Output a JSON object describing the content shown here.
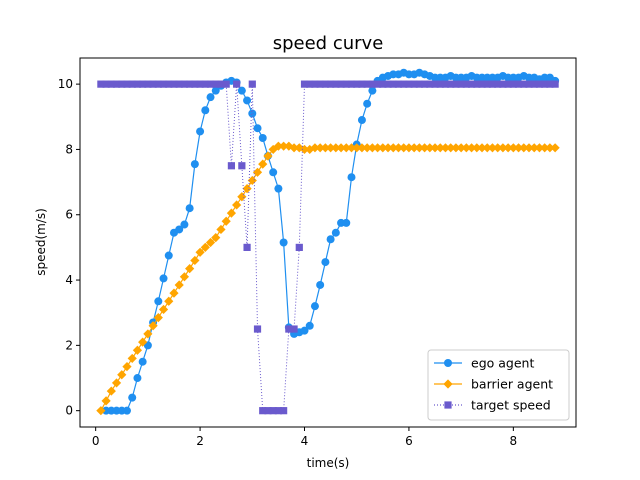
{
  "chart_data": {
    "type": "line",
    "title": "speed curve",
    "xlabel": "time(s)",
    "ylabel": "speed(m/s)",
    "xlim": [
      -0.3,
      9.2
    ],
    "ylim": [
      -0.5,
      10.8
    ],
    "xticks": [
      0,
      2,
      4,
      6,
      8
    ],
    "yticks": [
      0,
      2,
      4,
      6,
      8,
      10
    ],
    "grid": false,
    "legend_position": "lower right",
    "series": [
      {
        "name": "ego agent",
        "color": "#1f8ff0",
        "line_style": "solid",
        "marker": "circle",
        "x": [
          0.2,
          0.3,
          0.4,
          0.5,
          0.6,
          0.7,
          0.8,
          0.9,
          1.0,
          1.1,
          1.2,
          1.3,
          1.4,
          1.5,
          1.6,
          1.7,
          1.8,
          1.9,
          2.0,
          2.1,
          2.2,
          2.3,
          2.4,
          2.5,
          2.6,
          2.7,
          2.8,
          2.9,
          3.0,
          3.1,
          3.2,
          3.3,
          3.4,
          3.5,
          3.6,
          3.7,
          3.8,
          3.9,
          4.0,
          4.1,
          4.2,
          4.3,
          4.4,
          4.5,
          4.6,
          4.7,
          4.8,
          4.9,
          5.0,
          5.1,
          5.2,
          5.3,
          5.4,
          5.5,
          5.6,
          5.7,
          5.8,
          5.9,
          6.0,
          6.1,
          6.2,
          6.3,
          6.4,
          6.5,
          6.6,
          6.7,
          6.8,
          6.9,
          7.0,
          7.1,
          7.2,
          7.3,
          7.4,
          7.5,
          7.6,
          7.7,
          7.8,
          7.9,
          8.0,
          8.1,
          8.2,
          8.3,
          8.4,
          8.5,
          8.6,
          8.7,
          8.8
        ],
        "y": [
          0,
          0,
          0,
          0,
          0,
          0.4,
          1.0,
          1.5,
          2.0,
          2.7,
          3.35,
          4.05,
          4.75,
          5.45,
          5.55,
          5.7,
          6.2,
          7.55,
          8.55,
          9.2,
          9.6,
          9.8,
          9.95,
          10.05,
          10.1,
          10.05,
          9.8,
          9.5,
          9.1,
          8.65,
          8.35,
          7.8,
          7.3,
          6.8,
          5.15,
          2.55,
          2.35,
          2.4,
          2.45,
          2.6,
          3.2,
          3.85,
          4.55,
          5.25,
          5.45,
          5.75,
          5.75,
          7.15,
          8.15,
          8.9,
          9.4,
          9.8,
          10.1,
          10.2,
          10.25,
          10.3,
          10.3,
          10.35,
          10.3,
          10.3,
          10.35,
          10.3,
          10.25,
          10.2,
          10.2,
          10.2,
          10.25,
          10.2,
          10.2,
          10.2,
          10.25,
          10.2,
          10.2,
          10.2,
          10.2,
          10.2,
          10.25,
          10.2,
          10.2,
          10.2,
          10.25,
          10.2,
          10.2,
          10.15,
          10.2,
          10.2,
          10.1
        ]
      },
      {
        "name": "barrier agent",
        "color": "#ffa500",
        "line_style": "solid",
        "marker": "diamond",
        "x": [
          0.1,
          0.2,
          0.3,
          0.4,
          0.5,
          0.6,
          0.7,
          0.8,
          0.9,
          1.0,
          1.1,
          1.2,
          1.3,
          1.4,
          1.5,
          1.6,
          1.7,
          1.8,
          1.9,
          2.0,
          2.1,
          2.2,
          2.3,
          2.4,
          2.5,
          2.6,
          2.7,
          2.8,
          2.9,
          3.0,
          3.1,
          3.2,
          3.3,
          3.4,
          3.5,
          3.6,
          3.7,
          3.8,
          3.9,
          4.0,
          4.1,
          4.2,
          4.3,
          4.4,
          4.5,
          4.6,
          4.7,
          4.8,
          4.9,
          5.0,
          5.1,
          5.2,
          5.3,
          5.4,
          5.5,
          5.6,
          5.7,
          5.8,
          5.9,
          6.0,
          6.1,
          6.2,
          6.3,
          6.4,
          6.5,
          6.6,
          6.7,
          6.8,
          6.9,
          7.0,
          7.1,
          7.2,
          7.3,
          7.4,
          7.5,
          7.6,
          7.7,
          7.8,
          7.9,
          8.0,
          8.1,
          8.2,
          8.3,
          8.4,
          8.5,
          8.6,
          8.7,
          8.8
        ],
        "y": [
          0,
          0.3,
          0.6,
          0.85,
          1.1,
          1.35,
          1.6,
          1.85,
          2.1,
          2.35,
          2.6,
          2.85,
          3.1,
          3.35,
          3.6,
          3.85,
          4.1,
          4.35,
          4.6,
          4.85,
          5.0,
          5.15,
          5.3,
          5.55,
          5.8,
          6.05,
          6.3,
          6.55,
          6.8,
          7.05,
          7.3,
          7.55,
          7.8,
          8.0,
          8.1,
          8.1,
          8.1,
          8.05,
          8.05,
          8.0,
          8.0,
          8.05,
          8.05,
          8.05,
          8.05,
          8.05,
          8.05,
          8.05,
          8.05,
          8.05,
          8.05,
          8.05,
          8.05,
          8.05,
          8.05,
          8.05,
          8.05,
          8.05,
          8.05,
          8.05,
          8.05,
          8.05,
          8.05,
          8.05,
          8.05,
          8.05,
          8.05,
          8.05,
          8.05,
          8.05,
          8.05,
          8.05,
          8.05,
          8.05,
          8.05,
          8.05,
          8.05,
          8.05,
          8.05,
          8.05,
          8.05,
          8.05,
          8.05,
          8.05,
          8.05,
          8.05,
          8.05,
          8.05
        ]
      },
      {
        "name": "target speed",
        "color": "#6a5acd",
        "line_style": "dotted",
        "marker": "square",
        "x": [
          0.1,
          0.2,
          0.3,
          0.4,
          0.5,
          0.6,
          0.7,
          0.8,
          0.9,
          1.0,
          1.1,
          1.2,
          1.3,
          1.4,
          1.5,
          1.6,
          1.7,
          1.8,
          1.9,
          2.0,
          2.1,
          2.2,
          2.3,
          2.4,
          2.5,
          2.6,
          2.7,
          2.8,
          2.9,
          3.0,
          3.1,
          3.2,
          3.3,
          3.4,
          3.5,
          3.6,
          3.7,
          3.8,
          3.9,
          4.0,
          4.1,
          4.2,
          4.3,
          4.4,
          4.5,
          4.6,
          4.7,
          4.8,
          4.9,
          5.0,
          5.1,
          5.2,
          5.3,
          5.4,
          5.5,
          5.6,
          5.7,
          5.8,
          5.9,
          6.0,
          6.1,
          6.2,
          6.3,
          6.4,
          6.5,
          6.6,
          6.7,
          6.8,
          6.9,
          7.0,
          7.1,
          7.2,
          7.3,
          7.4,
          7.5,
          7.6,
          7.7,
          7.8,
          7.9,
          8.0,
          8.1,
          8.2,
          8.3,
          8.4,
          8.5,
          8.6,
          8.7,
          8.8
        ],
        "y": [
          10,
          10,
          10,
          10,
          10,
          10,
          10,
          10,
          10,
          10,
          10,
          10,
          10,
          10,
          10,
          10,
          10,
          10,
          10,
          10,
          10,
          10,
          10,
          10,
          10,
          7.5,
          10,
          7.5,
          5.0,
          10,
          2.5,
          0,
          0,
          0,
          0,
          0,
          2.5,
          2.5,
          5.0,
          10,
          10,
          10,
          10,
          10,
          10,
          10,
          10,
          10,
          10,
          10,
          10,
          10,
          10,
          10,
          10,
          10,
          10,
          10,
          10,
          10,
          10,
          10,
          10,
          10,
          10,
          10,
          10,
          10,
          10,
          10,
          10,
          10,
          10,
          10,
          10,
          10,
          10,
          10,
          10,
          10,
          10,
          10,
          10,
          10,
          10,
          10,
          10,
          10
        ]
      }
    ]
  }
}
